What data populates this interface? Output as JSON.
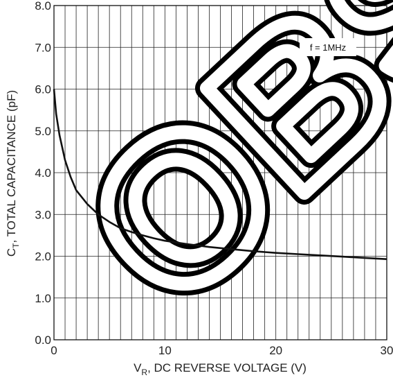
{
  "chart_data": {
    "type": "line",
    "title": "",
    "xlabel": {
      "main": "V",
      "sub": "R",
      "rest": ", DC REVERSE VOLTAGE (V)"
    },
    "ylabel": {
      "main": "C",
      "sub": "T",
      "rest": ", TOTAL CAPACITANCE (pF)"
    },
    "xlim": [
      0,
      30
    ],
    "ylim": [
      0,
      8
    ],
    "x_ticks": [
      0,
      10,
      20,
      30
    ],
    "x_tick_labels": [
      "0",
      "10",
      "20",
      "30"
    ],
    "y_ticks": [
      0,
      1,
      2,
      3,
      4,
      5,
      6,
      7,
      8
    ],
    "y_tick_labels": [
      "0.0",
      "1.0",
      "2.0",
      "3.0",
      "4.0",
      "5.0",
      "6.0",
      "7.0",
      "8.0"
    ],
    "grid": true,
    "x_minor_step": 1,
    "annotation": "f = 1MHz",
    "watermark_text": "OBSOLETE",
    "colors": {
      "line": "#111111",
      "grid": "#222222",
      "watermark": "#000000"
    },
    "series": [
      {
        "x": [
          0,
          0.2,
          0.5,
          1,
          1.5,
          2,
          3,
          4,
          5,
          6,
          7,
          8,
          9,
          10,
          12,
          14,
          16,
          18,
          20,
          22,
          24,
          26,
          28,
          30
        ],
        "values": [
          6.0,
          5.4,
          4.9,
          4.3,
          3.9,
          3.58,
          3.25,
          3.0,
          2.82,
          2.67,
          2.58,
          2.5,
          2.43,
          2.37,
          2.29,
          2.22,
          2.17,
          2.12,
          2.08,
          2.05,
          2.02,
          1.99,
          1.96,
          1.93
        ]
      }
    ]
  }
}
